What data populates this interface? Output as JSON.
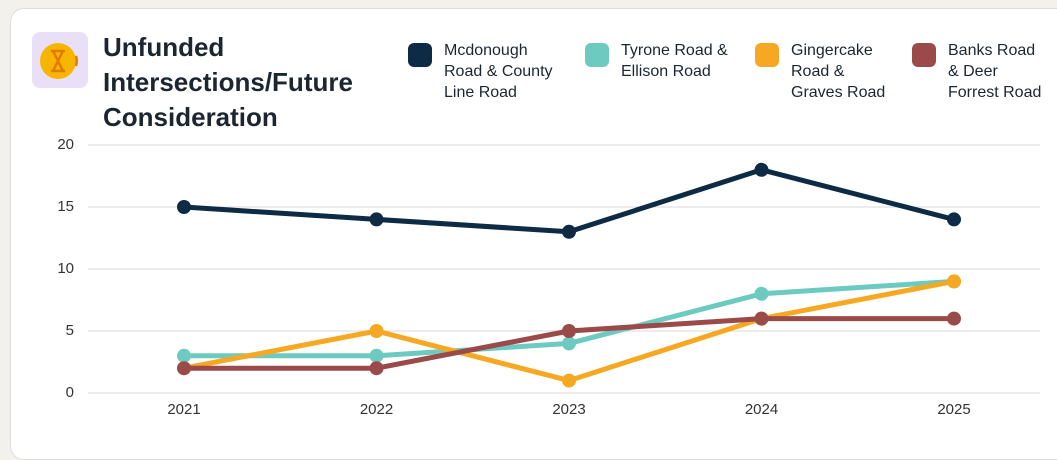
{
  "chart_data": {
    "type": "line",
    "title": "Unfunded Intersections/Future Consideration",
    "categories": [
      "2021",
      "2022",
      "2023",
      "2024",
      "2025"
    ],
    "series": [
      {
        "name": "Mcdonough Road & County Line Road",
        "color": "#0d2b45",
        "values": [
          15,
          14,
          13,
          18,
          14
        ]
      },
      {
        "name": "Tyrone Road & Ellison Road",
        "color": "#6ccac0",
        "values": [
          3,
          3,
          4,
          8,
          9
        ]
      },
      {
        "name": "Gingercake Road & Graves Road",
        "color": "#f7a823",
        "values": [
          2,
          5,
          1,
          6,
          9
        ]
      },
      {
        "name": "Banks Road & Deer Forrest Road",
        "color": "#9b4a4a",
        "values": [
          2,
          2,
          5,
          6,
          6
        ]
      }
    ],
    "ylim": [
      0,
      20
    ],
    "yticks": [
      0,
      5,
      10,
      15,
      20
    ],
    "grid": true
  }
}
